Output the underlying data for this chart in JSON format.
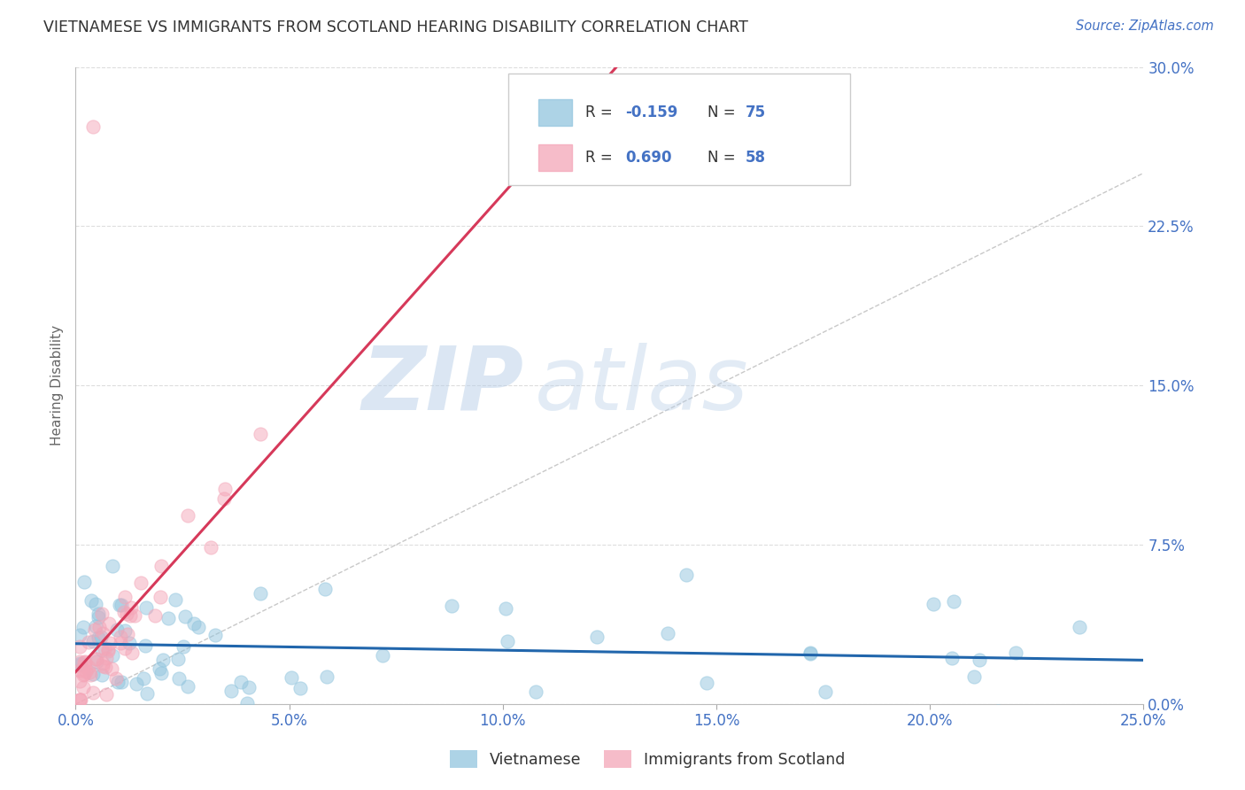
{
  "title": "VIETNAMESE VS IMMIGRANTS FROM SCOTLAND HEARING DISABILITY CORRELATION CHART",
  "source": "Source: ZipAtlas.com",
  "xlabel_ticks": [
    "0.0%",
    "5.0%",
    "10.0%",
    "15.0%",
    "20.0%",
    "25.0%"
  ],
  "xlabel_vals": [
    0.0,
    0.05,
    0.1,
    0.15,
    0.2,
    0.25
  ],
  "ylabel_ticks": [
    "0.0%",
    "7.5%",
    "15.0%",
    "22.5%",
    "30.0%"
  ],
  "ylabel_vals": [
    0.0,
    0.075,
    0.15,
    0.225,
    0.3
  ],
  "xlim": [
    0.0,
    0.25
  ],
  "ylim": [
    0.0,
    0.3
  ],
  "ylabel": "Hearing Disability",
  "watermark_zip": "ZIP",
  "watermark_atlas": "atlas",
  "legend_r_blue": "-0.159",
  "legend_n_blue": "75",
  "legend_r_pink": "0.690",
  "legend_n_pink": "58",
  "legend_label_blue": "Vietnamese",
  "legend_label_pink": "Immigrants from Scotland",
  "blue_color": "#92c5de",
  "pink_color": "#f4a6b8",
  "blue_line_color": "#2166ac",
  "pink_line_color": "#d6395a",
  "diag_line_color": "#bbbbbb",
  "background": "#ffffff",
  "grid_color": "#dddddd",
  "title_color": "#333333",
  "axis_label_color": "#4472c4",
  "legend_text_color": "#333333",
  "source_color": "#4472c4"
}
